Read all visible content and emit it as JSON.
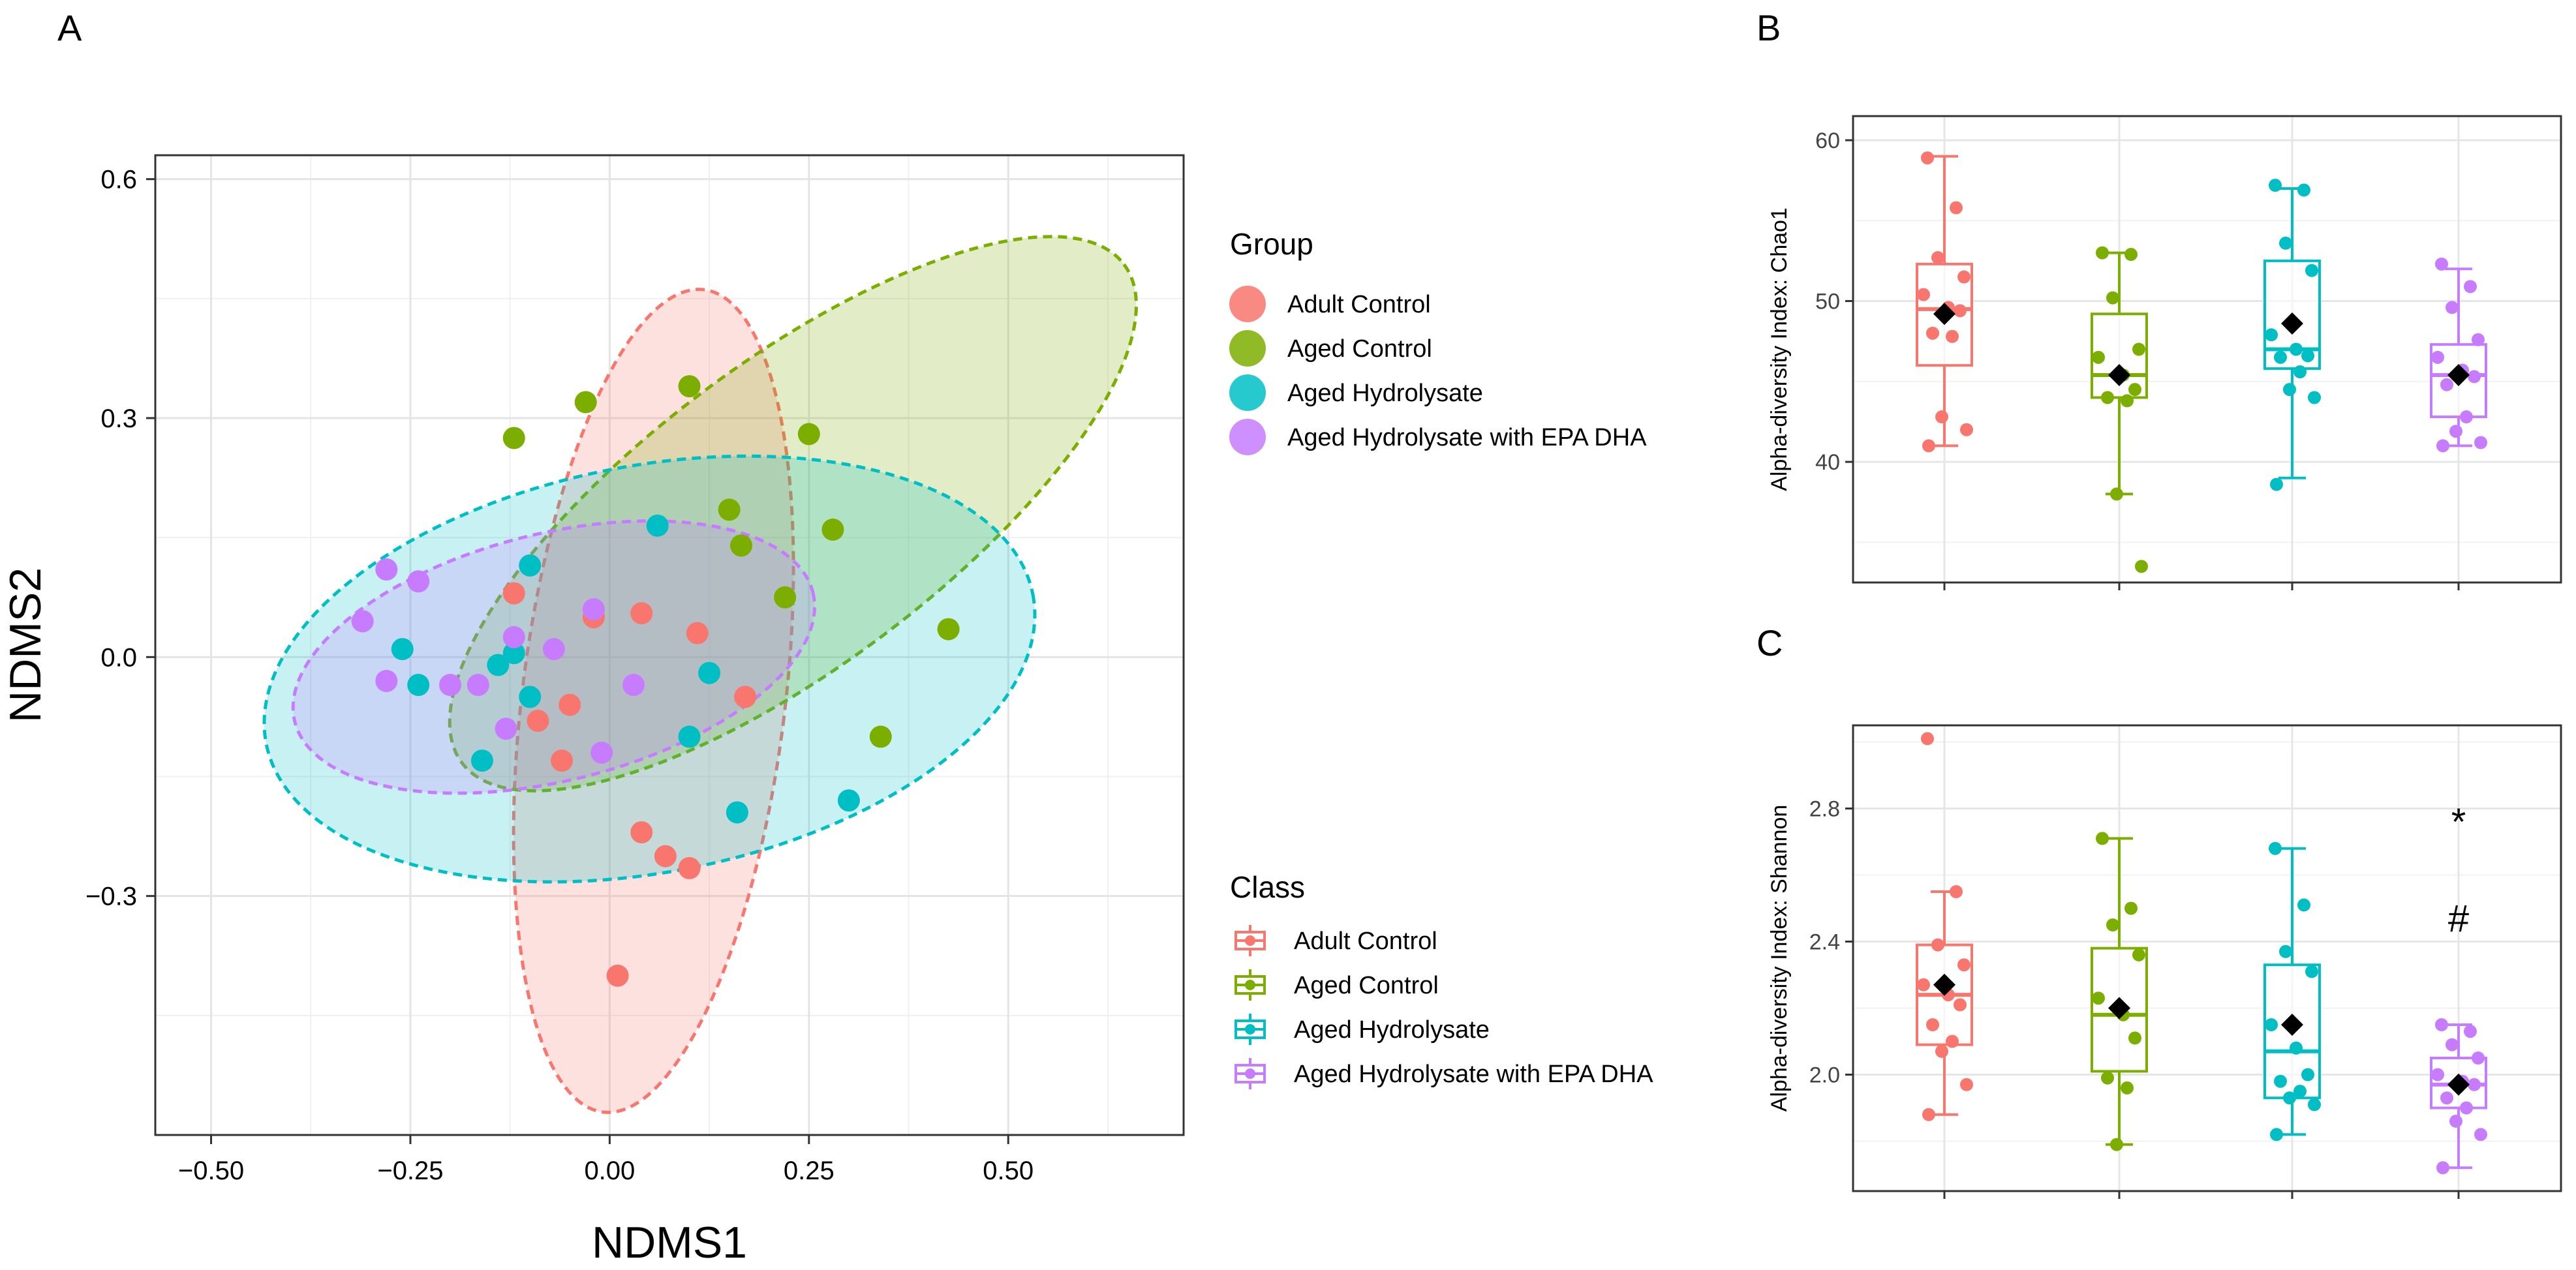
{
  "colors": {
    "adult_control": "#F8766D",
    "aged_control": "#7CAE00",
    "aged_hydrolysate": "#00BFC4",
    "aged_hydrolysate_epa_dha": "#C77CFF"
  },
  "chart_data": [
    {
      "panel": "A",
      "type": "scatter",
      "xlabel": "NDMS1",
      "ylabel": "NDMS2",
      "xlim": [
        -0.57,
        0.72
      ],
      "ylim": [
        -0.6,
        0.63
      ],
      "xticks": [
        -0.5,
        -0.25,
        0.0,
        0.25,
        0.5
      ],
      "xtick_labels": [
        "−0.50",
        "−0.25",
        "0.00",
        "0.25",
        "0.50"
      ],
      "yticks": [
        -0.3,
        0.0,
        0.3,
        0.6
      ],
      "ytick_labels": [
        "−0.3",
        "0.0",
        "0.3",
        "0.6"
      ],
      "legend_group_title": "Group",
      "legend_class_title": "Class",
      "series": [
        {
          "name": "Adult Control",
          "color_key": "adult_control",
          "ellipse": {
            "cx": 0.055,
            "cy": -0.055,
            "rx": 0.165,
            "ry": 0.52,
            "angle_deg": 7
          },
          "points": [
            [
              -0.02,
              0.05
            ],
            [
              0.04,
              0.055
            ],
            [
              0.11,
              0.03
            ],
            [
              -0.12,
              0.08
            ],
            [
              -0.05,
              -0.06
            ],
            [
              -0.09,
              -0.08
            ],
            [
              -0.06,
              -0.13
            ],
            [
              0.17,
              -0.05
            ],
            [
              0.04,
              -0.22
            ],
            [
              0.07,
              -0.25
            ],
            [
              0.1,
              -0.265
            ],
            [
              0.01,
              -0.4
            ]
          ]
        },
        {
          "name": "Aged Control",
          "color_key": "aged_control",
          "ellipse": {
            "cx": 0.23,
            "cy": 0.18,
            "rx": 0.52,
            "ry": 0.19,
            "angle_deg": -37
          },
          "points": [
            [
              -0.03,
              0.32
            ],
            [
              0.1,
              0.34
            ],
            [
              -0.12,
              0.275
            ],
            [
              0.25,
              0.28
            ],
            [
              0.28,
              0.16
            ],
            [
              0.15,
              0.185
            ],
            [
              0.165,
              0.14
            ],
            [
              0.22,
              0.075
            ],
            [
              0.425,
              0.035
            ],
            [
              0.34,
              -0.1
            ]
          ]
        },
        {
          "name": "Aged Hydrolysate",
          "color_key": "aged_hydrolysate",
          "ellipse": {
            "cx": 0.05,
            "cy": -0.015,
            "rx": 0.49,
            "ry": 0.255,
            "angle_deg": -11
          },
          "points": [
            [
              0.06,
              0.165
            ],
            [
              -0.1,
              0.115
            ],
            [
              -0.26,
              0.01
            ],
            [
              -0.12,
              0.005
            ],
            [
              -0.14,
              -0.01
            ],
            [
              -0.24,
              -0.035
            ],
            [
              -0.1,
              -0.05
            ],
            [
              0.125,
              -0.02
            ],
            [
              0.1,
              -0.1
            ],
            [
              -0.16,
              -0.13
            ],
            [
              0.16,
              -0.195
            ],
            [
              0.3,
              -0.18
            ]
          ]
        },
        {
          "name": "Aged Hydrolysate with EPA DHA",
          "color_key": "aged_hydrolysate_epa_dha",
          "ellipse": {
            "cx": -0.07,
            "cy": 0.0,
            "rx": 0.335,
            "ry": 0.155,
            "angle_deg": -14
          },
          "points": [
            [
              -0.28,
              0.11
            ],
            [
              -0.24,
              0.095
            ],
            [
              -0.31,
              0.045
            ],
            [
              -0.02,
              0.06
            ],
            [
              -0.12,
              0.025
            ],
            [
              -0.07,
              0.01
            ],
            [
              -0.28,
              -0.03
            ],
            [
              -0.2,
              -0.035
            ],
            [
              -0.165,
              -0.035
            ],
            [
              0.03,
              -0.035
            ],
            [
              -0.13,
              -0.09
            ],
            [
              -0.01,
              -0.12
            ]
          ]
        }
      ]
    },
    {
      "panel": "B",
      "type": "box",
      "ylabel": "Alpha-diversity Index: Chao1",
      "ylim": [
        32.5,
        61.5
      ],
      "yticks": [
        40,
        50,
        60
      ],
      "ytick_labels": [
        "40",
        "50",
        "60"
      ],
      "groups": [
        {
          "name": "Adult Control",
          "color_key": "adult_control",
          "whisker_low": 41,
          "q1": 46,
          "median": 49.5,
          "q3": 52.3,
          "whisker_high": 59,
          "mean": 49.2,
          "points": [
            58.9,
            55.8,
            52.7,
            51.5,
            50.4,
            49.6,
            49.4,
            48,
            47.8,
            42.8,
            42,
            41
          ]
        },
        {
          "name": "Aged Control",
          "color_key": "aged_control",
          "whisker_low": 38,
          "q1": 44,
          "median": 45.4,
          "q3": 49.2,
          "whisker_high": 53,
          "mean": 45.4,
          "points": [
            53,
            52.9,
            50.2,
            47,
            46.5,
            45.4,
            44.5,
            44,
            43.8,
            38,
            33.5
          ]
        },
        {
          "name": "Aged Hydrolysate",
          "color_key": "aged_hydrolysate",
          "whisker_low": 39,
          "q1": 45.8,
          "median": 47,
          "q3": 52.5,
          "whisker_high": 57,
          "mean": 48.6,
          "points": [
            57.2,
            56.9,
            53.6,
            51.9,
            47.9,
            47,
            46.6,
            46.5,
            45.6,
            44.5,
            44,
            38.6
          ]
        },
        {
          "name": "Aged Hydrolysate with EPA DHA",
          "color_key": "aged_hydrolysate_epa_dha",
          "whisker_low": 41,
          "q1": 42.8,
          "median": 45.4,
          "q3": 47.3,
          "whisker_high": 52,
          "mean": 45.4,
          "points": [
            52.3,
            50.9,
            49.6,
            47.6,
            46.5,
            45.7,
            45.3,
            44.8,
            42.8,
            41.9,
            41.2,
            41
          ]
        }
      ]
    },
    {
      "panel": "C",
      "type": "box",
      "ylabel": "Alpha-diversity Index: Shannon",
      "ylim": [
        1.65,
        3.05
      ],
      "yticks": [
        2.0,
        2.4,
        2.8
      ],
      "ytick_labels": [
        "2.0",
        "2.4",
        "2.8"
      ],
      "annotations": [
        {
          "text": "*",
          "group": 3,
          "y": 2.76
        },
        {
          "text": "#",
          "group": 3,
          "y": 2.47
        }
      ],
      "groups": [
        {
          "name": "Adult Control",
          "color_key": "adult_control",
          "whisker_low": 1.88,
          "q1": 2.09,
          "median": 2.24,
          "q3": 2.39,
          "whisker_high": 2.55,
          "mean": 2.27,
          "points": [
            3.01,
            2.55,
            2.39,
            2.33,
            2.27,
            2.24,
            2.21,
            2.15,
            2.1,
            2.07,
            1.97,
            1.88
          ]
        },
        {
          "name": "Aged Control",
          "color_key": "aged_control",
          "whisker_low": 1.79,
          "q1": 2.01,
          "median": 2.18,
          "q3": 2.38,
          "whisker_high": 2.71,
          "mean": 2.2,
          "points": [
            2.71,
            2.5,
            2.45,
            2.36,
            2.23,
            2.18,
            2.11,
            1.99,
            1.96,
            1.79
          ]
        },
        {
          "name": "Aged Hydrolysate",
          "color_key": "aged_hydrolysate",
          "whisker_low": 1.82,
          "q1": 1.93,
          "median": 2.07,
          "q3": 2.33,
          "whisker_high": 2.68,
          "mean": 2.15,
          "points": [
            2.68,
            2.51,
            2.37,
            2.31,
            2.15,
            2.08,
            2.0,
            1.98,
            1.95,
            1.93,
            1.91,
            1.82
          ]
        },
        {
          "name": "Aged Hydrolysate with EPA DHA",
          "color_key": "aged_hydrolysate_epa_dha",
          "whisker_low": 1.72,
          "q1": 1.9,
          "median": 1.97,
          "q3": 2.05,
          "whisker_high": 2.15,
          "mean": 1.97,
          "points": [
            2.15,
            2.13,
            2.09,
            2.05,
            2.0,
            1.98,
            1.97,
            1.93,
            1.9,
            1.86,
            1.82,
            1.72
          ]
        }
      ]
    }
  ]
}
